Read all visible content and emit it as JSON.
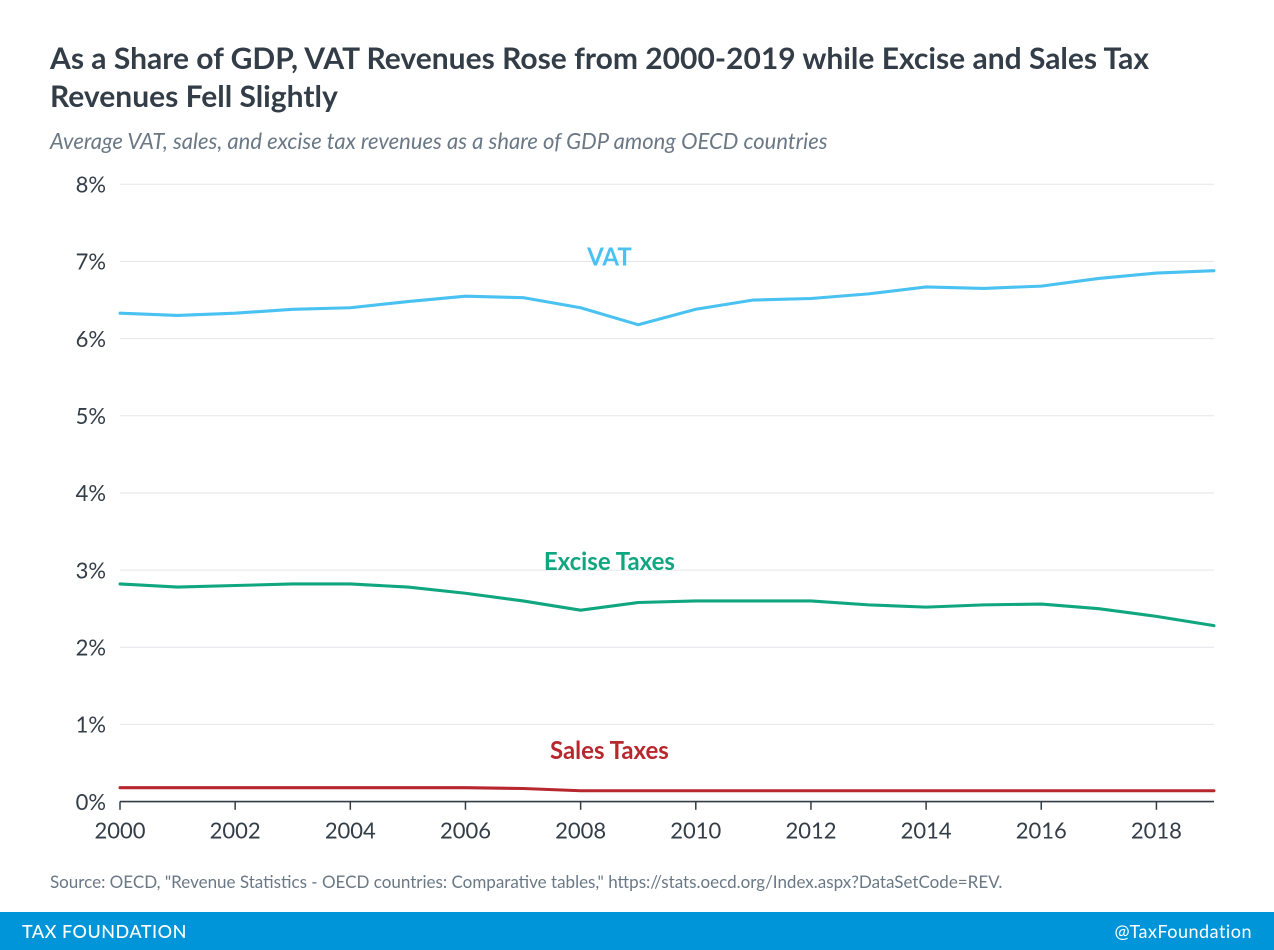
{
  "title": "As a Share of GDP, VAT Revenues Rose from 2000-2019 while Excise and Sales Tax Revenues Fell Slightly",
  "subtitle": "Average VAT, sales, and excise tax revenues as a share of GDP among OECD countries",
  "source": "Source: OECD, \"Revenue Statistics - OECD countries: Comparative tables,\" https://stats.oecd.org/Index.aspx?DataSetCode=REV.",
  "footer": {
    "brand": "TAX FOUNDATION",
    "handle": "@TaxFoundation",
    "bg_color": "#0094d9"
  },
  "chart": {
    "type": "line",
    "background_color": "#ffffff",
    "grid_color": "#e3e6ea",
    "axis_color": "#333d47",
    "tick_fontsize": 22,
    "label_fontsize": 24,
    "xlim": [
      2000,
      2019
    ],
    "ylim": [
      0,
      8
    ],
    "xtick_step": 2,
    "ytick_step": 1,
    "ytick_suffix": "%",
    "line_width": 3,
    "series": [
      {
        "name": "VAT",
        "label": "VAT",
        "color": "#4ac2f1",
        "label_x": 2008.5,
        "label_y": 6.95,
        "values": [
          6.33,
          6.3,
          6.33,
          6.38,
          6.4,
          6.48,
          6.55,
          6.53,
          6.4,
          6.18,
          6.38,
          6.5,
          6.52,
          6.58,
          6.67,
          6.65,
          6.68,
          6.78,
          6.85,
          6.88
        ]
      },
      {
        "name": "Excise Taxes",
        "label": "Excise Taxes",
        "color": "#10a680",
        "label_x": 2008.5,
        "label_y": 3.0,
        "values": [
          2.82,
          2.78,
          2.8,
          2.82,
          2.82,
          2.78,
          2.7,
          2.6,
          2.48,
          2.58,
          2.6,
          2.6,
          2.6,
          2.55,
          2.52,
          2.55,
          2.56,
          2.5,
          2.4,
          2.28
        ]
      },
      {
        "name": "Sales Taxes",
        "label": "Sales Taxes",
        "color": "#b8272e",
        "label_x": 2008.5,
        "label_y": 0.55,
        "values": [
          0.18,
          0.18,
          0.18,
          0.18,
          0.18,
          0.18,
          0.18,
          0.17,
          0.14,
          0.14,
          0.14,
          0.14,
          0.14,
          0.14,
          0.14,
          0.14,
          0.14,
          0.14,
          0.14,
          0.14
        ]
      }
    ],
    "years": [
      2000,
      2001,
      2002,
      2003,
      2004,
      2005,
      2006,
      2007,
      2008,
      2009,
      2010,
      2011,
      2012,
      2013,
      2014,
      2015,
      2016,
      2017,
      2018,
      2019
    ]
  }
}
